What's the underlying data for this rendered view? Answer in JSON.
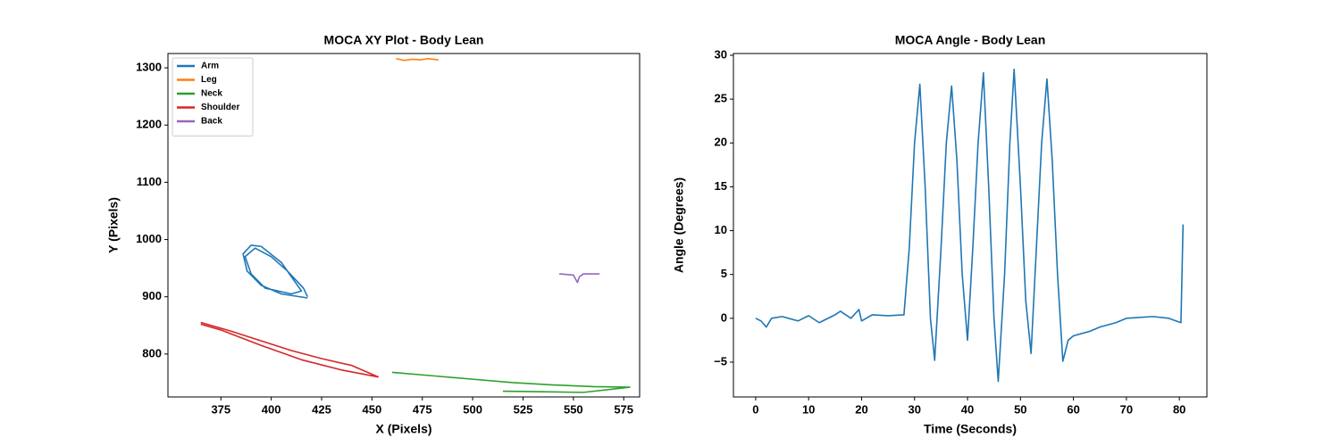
{
  "chart_data": [
    {
      "type": "line",
      "title": "MOCA XY Plot - Body Lean",
      "x_label": "X (Pixels)",
      "y_label": "Y (Pixels)",
      "xlim": [
        348.7,
        582.9
      ],
      "ylim": [
        725,
        1325
      ],
      "xticks": [
        375,
        400,
        425,
        450,
        475,
        500,
        525,
        550,
        575
      ],
      "yticks": [
        800,
        900,
        1000,
        1100,
        1200,
        1300
      ],
      "legend": "upper left",
      "series": [
        {
          "name": "Arm",
          "color": "#1f77b4",
          "x": [
            418,
            405,
            395,
            388,
            386,
            390,
            395,
            405,
            410,
            415,
            410,
            397,
            390,
            387,
            392,
            400,
            408,
            416,
            418
          ],
          "values": [
            898,
            905,
            920,
            945,
            975,
            990,
            988,
            960,
            935,
            910,
            905,
            915,
            940,
            970,
            985,
            970,
            945,
            915,
            900
          ]
        },
        {
          "name": "Leg",
          "color": "#ff7f0e",
          "x": [
            462,
            466,
            470,
            474,
            478,
            483
          ],
          "values": [
            1316,
            1313,
            1315,
            1314,
            1316,
            1314
          ]
        },
        {
          "name": "Neck",
          "color": "#2ca02c",
          "x": [
            460,
            480,
            500,
            520,
            540,
            560,
            578,
            555,
            535,
            515
          ],
          "values": [
            768,
            762,
            756,
            750,
            746,
            743,
            742,
            733,
            734,
            735
          ]
        },
        {
          "name": "Shoulder",
          "color": "#d62728",
          "x": [
            365,
            380,
            395,
            410,
            425,
            440,
            453,
            435,
            415,
            395,
            375,
            365
          ],
          "values": [
            855,
            840,
            823,
            806,
            792,
            780,
            760,
            772,
            790,
            815,
            842,
            852
          ]
        },
        {
          "name": "Back",
          "color": "#9467bd",
          "x": [
            543,
            550,
            552,
            553,
            555,
            563
          ],
          "values": [
            940,
            938,
            925,
            935,
            940,
            940
          ]
        }
      ]
    },
    {
      "type": "line",
      "title": "MOCA Angle - Body Lean",
      "x_label": "Time (Seconds)",
      "y_label": "Angle (Degrees)",
      "xlim": [
        -4.2,
        85.2
      ],
      "ylim": [
        -8.97,
        30.2
      ],
      "xticks": [
        0,
        10,
        20,
        30,
        40,
        50,
        60,
        70,
        80
      ],
      "yticks": [
        {
          "value": -5,
          "label": "−5"
        },
        0,
        5,
        10,
        15,
        20,
        25,
        30
      ],
      "series": [
        {
          "name": null,
          "color": "#1f77b4",
          "x": [
            0,
            1,
            2,
            3,
            5,
            8,
            10,
            12,
            15,
            16,
            18,
            19.5,
            20,
            22,
            25,
            28,
            29,
            30,
            31,
            32,
            33,
            33.8,
            35,
            36,
            37,
            38,
            39,
            40,
            41,
            42,
            43,
            44,
            45,
            45.8,
            47,
            48,
            48.8,
            50,
            51,
            52,
            53,
            54,
            55,
            56,
            57,
            58,
            59,
            60,
            63,
            65,
            68,
            70,
            75,
            78,
            80.3,
            80.7
          ],
          "values": [
            0,
            -0.3,
            -1,
            0,
            0.2,
            -0.3,
            0.3,
            -0.5,
            0.4,
            0.8,
            0,
            1,
            -0.3,
            0.4,
            0.3,
            0.4,
            8,
            20,
            26.7,
            15,
            0,
            -4.8,
            8,
            20,
            26.5,
            18,
            5,
            -2.5,
            8,
            20,
            28,
            15,
            0,
            -7.2,
            5,
            20,
            28.4,
            15,
            2,
            -4,
            8,
            20,
            27.3,
            18,
            5,
            -4.9,
            -2.5,
            -2,
            -1.5,
            -1,
            -0.5,
            0,
            0.2,
            0,
            -0.5,
            10.7
          ]
        }
      ]
    }
  ]
}
